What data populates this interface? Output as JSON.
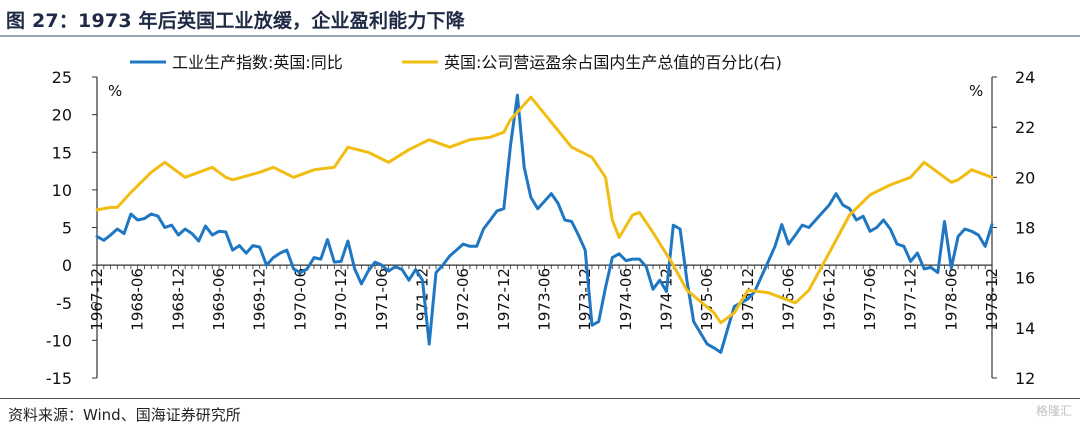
{
  "figure": {
    "title": "图 27：1973 年后英国工业放缓，企业盈利能力下降",
    "source": "资料来源：Wind、国海证券研究所",
    "watermark": "格隆汇"
  },
  "chart_data": {
    "type": "line",
    "title": "",
    "left_axis": {
      "unit": "%",
      "ylim": [
        -15,
        25
      ],
      "ticks": [
        -15,
        -10,
        -5,
        0,
        5,
        10,
        15,
        20,
        25
      ]
    },
    "right_axis": {
      "unit": "%",
      "ylim": [
        12,
        24
      ],
      "ticks": [
        12,
        14,
        16,
        18,
        20,
        22,
        24
      ]
    },
    "x_range": [
      "1967-12",
      "1978-12"
    ],
    "x_ticks": [
      "1967-12",
      "1968-06",
      "1968-12",
      "1969-06",
      "1969-12",
      "1970-06",
      "1970-12",
      "1971-06",
      "1971-12",
      "1972-06",
      "1972-12",
      "1973-06",
      "1973-12",
      "1974-06",
      "1974-12",
      "1975-06",
      "1975-12",
      "1976-06",
      "1976-12",
      "1977-06",
      "1977-12",
      "1978-06",
      "1978-12"
    ],
    "legend_position": "top",
    "grid": false,
    "series": [
      {
        "name": "工业生产指数:英国:同比",
        "axis": "left",
        "color": "#1f77c4",
        "points": [
          [
            "1967-12",
            3.8
          ],
          [
            "1968-01",
            3.3
          ],
          [
            "1968-02",
            4.0
          ],
          [
            "1968-03",
            4.8
          ],
          [
            "1968-04",
            4.2
          ],
          [
            "1968-05",
            6.8
          ],
          [
            "1968-06",
            6.0
          ],
          [
            "1968-07",
            6.2
          ],
          [
            "1968-08",
            6.8
          ],
          [
            "1968-09",
            6.5
          ],
          [
            "1968-10",
            5.0
          ],
          [
            "1968-11",
            5.3
          ],
          [
            "1968-12",
            4.0
          ],
          [
            "1969-01",
            4.8
          ],
          [
            "1969-02",
            4.2
          ],
          [
            "1969-03",
            3.2
          ],
          [
            "1969-04",
            5.2
          ],
          [
            "1969-05",
            4.0
          ],
          [
            "1969-06",
            4.5
          ],
          [
            "1969-07",
            4.4
          ],
          [
            "1969-08",
            2.0
          ],
          [
            "1969-09",
            2.6
          ],
          [
            "1969-10",
            1.6
          ],
          [
            "1969-11",
            2.6
          ],
          [
            "1969-12",
            2.4
          ],
          [
            "1970-01",
            0.0
          ],
          [
            "1970-02",
            1.0
          ],
          [
            "1970-03",
            1.6
          ],
          [
            "1970-04",
            2.0
          ],
          [
            "1970-05",
            -0.5
          ],
          [
            "1970-06",
            -1.0
          ],
          [
            "1970-07",
            -0.5
          ],
          [
            "1970-08",
            1.0
          ],
          [
            "1970-09",
            0.8
          ],
          [
            "1970-10",
            3.4
          ],
          [
            "1970-11",
            0.4
          ],
          [
            "1970-12",
            0.5
          ],
          [
            "1971-01",
            3.2
          ],
          [
            "1971-02",
            -0.5
          ],
          [
            "1971-03",
            -2.5
          ],
          [
            "1971-04",
            -0.8
          ],
          [
            "1971-05",
            0.4
          ],
          [
            "1971-06",
            0.0
          ],
          [
            "1971-07",
            -0.8
          ],
          [
            "1971-08",
            -0.2
          ],
          [
            "1971-09",
            -0.6
          ],
          [
            "1971-10",
            -2.0
          ],
          [
            "1971-11",
            -0.6
          ],
          [
            "1971-12",
            -2.0
          ],
          [
            "1972-01",
            -10.5
          ],
          [
            "1972-02",
            -1.0
          ],
          [
            "1972-03",
            0.0
          ],
          [
            "1972-04",
            1.2
          ],
          [
            "1972-05",
            2.0
          ],
          [
            "1972-06",
            2.8
          ],
          [
            "1972-07",
            2.5
          ],
          [
            "1972-08",
            2.5
          ],
          [
            "1972-09",
            4.8
          ],
          [
            "1972-10",
            6.0
          ],
          [
            "1972-11",
            7.2
          ],
          [
            "1972-12",
            7.5
          ],
          [
            "1973-01",
            16.0
          ],
          [
            "1973-02",
            22.6
          ],
          [
            "1973-03",
            13.0
          ],
          [
            "1973-04",
            9.0
          ],
          [
            "1973-05",
            7.5
          ],
          [
            "1973-06",
            8.5
          ],
          [
            "1973-07",
            9.5
          ],
          [
            "1973-08",
            8.2
          ],
          [
            "1973-09",
            6.0
          ],
          [
            "1973-10",
            5.8
          ],
          [
            "1973-11",
            4.0
          ],
          [
            "1973-12",
            2.0
          ],
          [
            "1974-01",
            -8.0
          ],
          [
            "1974-02",
            -7.5
          ],
          [
            "1974-03",
            -3.0
          ],
          [
            "1974-04",
            1.0
          ],
          [
            "1974-05",
            1.5
          ],
          [
            "1974-06",
            0.6
          ],
          [
            "1974-07",
            0.8
          ],
          [
            "1974-08",
            0.8
          ],
          [
            "1974-09",
            -0.2
          ],
          [
            "1974-10",
            -3.2
          ],
          [
            "1974-11",
            -2.0
          ],
          [
            "1974-12",
            -3.5
          ],
          [
            "1975-01",
            5.3
          ],
          [
            "1975-02",
            4.8
          ],
          [
            "1975-03",
            -2.0
          ],
          [
            "1975-04",
            -7.5
          ],
          [
            "1975-05",
            -9.0
          ],
          [
            "1975-06",
            -10.5
          ],
          [
            "1975-07",
            -11.0
          ],
          [
            "1975-08",
            -11.6
          ],
          [
            "1975-09",
            -8.5
          ],
          [
            "1975-10",
            -5.5
          ],
          [
            "1975-11",
            -5.0
          ],
          [
            "1975-12",
            -4.5
          ],
          [
            "1976-01",
            -3.5
          ],
          [
            "1976-02",
            -1.5
          ],
          [
            "1976-03",
            0.5
          ],
          [
            "1976-04",
            2.5
          ],
          [
            "1976-05",
            5.4
          ],
          [
            "1976-06",
            2.8
          ],
          [
            "1976-07",
            4.0
          ],
          [
            "1976-08",
            5.3
          ],
          [
            "1976-09",
            5.0
          ],
          [
            "1976-10",
            6.0
          ],
          [
            "1976-11",
            7.0
          ],
          [
            "1976-12",
            8.0
          ],
          [
            "1977-01",
            9.5
          ],
          [
            "1977-02",
            8.0
          ],
          [
            "1977-03",
            7.5
          ],
          [
            "1977-04",
            6.0
          ],
          [
            "1977-05",
            6.5
          ],
          [
            "1977-06",
            4.5
          ],
          [
            "1977-07",
            5.0
          ],
          [
            "1977-08",
            6.0
          ],
          [
            "1977-09",
            4.8
          ],
          [
            "1977-10",
            2.8
          ],
          [
            "1977-11",
            2.5
          ],
          [
            "1977-12",
            0.5
          ],
          [
            "1978-01",
            1.6
          ],
          [
            "1978-02",
            -0.5
          ],
          [
            "1978-03",
            -0.3
          ],
          [
            "1978-04",
            -1.0
          ],
          [
            "1978-05",
            5.8
          ],
          [
            "1978-06",
            -0.4
          ],
          [
            "1978-07",
            3.8
          ],
          [
            "1978-08",
            4.8
          ],
          [
            "1978-09",
            4.5
          ],
          [
            "1978-10",
            4.0
          ],
          [
            "1978-11",
            2.5
          ],
          [
            "1978-12",
            5.4
          ]
        ]
      },
      {
        "name": "英国:公司营运盈余占国内生产总值的百分比(右)",
        "axis": "right",
        "color": "#f2bd12",
        "points": [
          [
            "1967-12",
            18.7
          ],
          [
            "1968-02",
            18.8
          ],
          [
            "1968-03",
            18.8
          ],
          [
            "1968-05",
            19.4
          ],
          [
            "1968-08",
            20.2
          ],
          [
            "1968-10",
            20.6
          ],
          [
            "1969-01",
            20.0
          ],
          [
            "1969-03",
            20.2
          ],
          [
            "1969-05",
            20.4
          ],
          [
            "1969-07",
            20.0
          ],
          [
            "1969-08",
            19.9
          ],
          [
            "1969-12",
            20.2
          ],
          [
            "1970-02",
            20.4
          ],
          [
            "1970-05",
            20.0
          ],
          [
            "1970-08",
            20.3
          ],
          [
            "1970-11",
            20.4
          ],
          [
            "1971-01",
            21.2
          ],
          [
            "1971-04",
            21.0
          ],
          [
            "1971-07",
            20.6
          ],
          [
            "1971-10",
            21.1
          ],
          [
            "1972-01",
            21.5
          ],
          [
            "1972-04",
            21.2
          ],
          [
            "1972-07",
            21.5
          ],
          [
            "1972-10",
            21.6
          ],
          [
            "1972-12",
            21.8
          ],
          [
            "1973-01",
            22.3
          ],
          [
            "1973-04",
            23.2
          ],
          [
            "1973-07",
            22.2
          ],
          [
            "1973-10",
            21.2
          ],
          [
            "1974-01",
            20.8
          ],
          [
            "1974-03",
            20.0
          ],
          [
            "1974-04",
            18.3
          ],
          [
            "1974-05",
            17.6
          ],
          [
            "1974-07",
            18.5
          ],
          [
            "1974-08",
            18.6
          ],
          [
            "1974-10",
            17.8
          ],
          [
            "1975-01",
            16.5
          ],
          [
            "1975-03",
            15.5
          ],
          [
            "1975-07",
            14.6
          ],
          [
            "1975-08",
            14.2
          ],
          [
            "1975-10",
            14.6
          ],
          [
            "1975-12",
            15.5
          ],
          [
            "1976-03",
            15.4
          ],
          [
            "1976-07",
            15.0
          ],
          [
            "1976-09",
            15.5
          ],
          [
            "1976-12",
            17.0
          ],
          [
            "1977-03",
            18.5
          ],
          [
            "1977-06",
            19.3
          ],
          [
            "1977-09",
            19.7
          ],
          [
            "1977-12",
            20.0
          ],
          [
            "1978-02",
            20.6
          ],
          [
            "1978-04",
            20.2
          ],
          [
            "1978-06",
            19.8
          ],
          [
            "1978-07",
            19.9
          ],
          [
            "1978-09",
            20.3
          ],
          [
            "1978-12",
            20.0
          ]
        ]
      }
    ]
  }
}
